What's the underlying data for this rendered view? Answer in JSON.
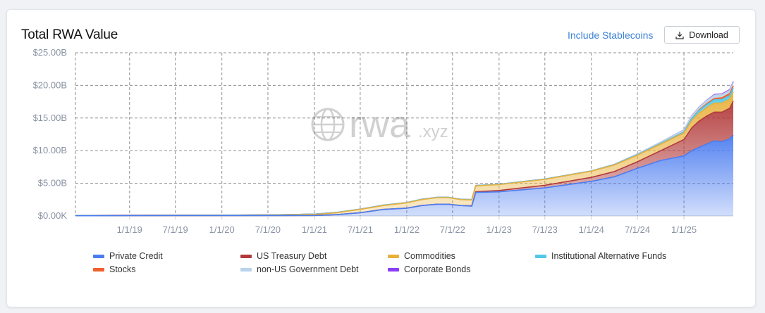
{
  "header": {
    "title": "Total RWA Value",
    "include_stablecoins_label": "Include Stablecoins",
    "download_label": "Download"
  },
  "watermark": {
    "main": "rwa",
    "suffix": ".xyz"
  },
  "colors": {
    "private_credit": "#4b7cf0",
    "us_treasury_debt": "#b23a3a",
    "commodities": "#e8b13c",
    "institutional_alternative_funds": "#53c8e6",
    "stocks": "#f0602e",
    "non_us_government_debt": "#b8d3ea",
    "corporate_bonds": "#8b3ef5",
    "grid": "#8f8f8f",
    "axis_text": "#8a93a3"
  },
  "chart_data": {
    "type": "area",
    "stacked": true,
    "title": "Total RWA Value",
    "xlabel": "",
    "ylabel": "",
    "y_ticks": [
      "$0.00K",
      "$5.00B",
      "$10.00B",
      "$15.00B",
      "$20.00B",
      "$25.00B"
    ],
    "x_ticks": [
      "1/1/19",
      "7/1/19",
      "1/1/20",
      "7/1/20",
      "1/1/21",
      "7/1/21",
      "1/1/22",
      "7/1/22",
      "1/1/23",
      "7/1/23",
      "1/1/24",
      "7/1/24",
      "1/1/25"
    ],
    "ylim": [
      0,
      25
    ],
    "y_unit": "billions USD",
    "xlim": [
      "2018-06-01",
      "2025-07-15"
    ],
    "grid": true,
    "legend_position": "bottom",
    "x": [
      "2018-06-01",
      "2019-01-01",
      "2019-07-01",
      "2020-01-01",
      "2020-07-01",
      "2021-01-01",
      "2021-04-01",
      "2021-07-01",
      "2021-10-01",
      "2022-01-01",
      "2022-03-01",
      "2022-05-01",
      "2022-06-15",
      "2022-08-01",
      "2022-09-15",
      "2022-10-01",
      "2023-01-01",
      "2023-07-01",
      "2024-01-01",
      "2024-04-01",
      "2024-07-01",
      "2024-10-01",
      "2025-01-01",
      "2025-02-01",
      "2025-03-01",
      "2025-04-01",
      "2025-05-01",
      "2025-06-01",
      "2025-07-01",
      "2025-07-15"
    ],
    "series": [
      {
        "name": "Private Credit",
        "color": "#4b7cf0",
        "values": [
          0.03,
          0.04,
          0.05,
          0.05,
          0.05,
          0.08,
          0.2,
          0.5,
          1.0,
          1.2,
          1.6,
          1.8,
          1.8,
          1.6,
          1.5,
          3.6,
          3.7,
          4.3,
          5.3,
          6.0,
          7.3,
          8.5,
          9.2,
          10.0,
          10.5,
          11.0,
          11.5,
          11.4,
          11.8,
          12.4
        ]
      },
      {
        "name": "US Treasury Debt",
        "color": "#b23a3a",
        "values": [
          0,
          0,
          0,
          0,
          0,
          0,
          0,
          0,
          0,
          0,
          0,
          0,
          0,
          0,
          0.05,
          0.1,
          0.2,
          0.4,
          0.6,
          0.8,
          1.0,
          1.5,
          2.5,
          3.5,
          4.0,
          4.3,
          4.4,
          4.5,
          4.7,
          5.2
        ]
      },
      {
        "name": "Commodities",
        "color": "#e8b13c",
        "values": [
          0,
          0,
          0,
          0.02,
          0.05,
          0.15,
          0.3,
          0.5,
          0.6,
          0.8,
          0.9,
          1.0,
          1.0,
          0.9,
          0.9,
          0.9,
          0.9,
          0.9,
          0.95,
          1.0,
          1.0,
          1.0,
          1.0,
          1.1,
          1.2,
          1.3,
          1.4,
          1.4,
          1.4,
          1.4
        ]
      },
      {
        "name": "Institutional Alternative Funds",
        "color": "#53c8e6",
        "values": [
          0.05,
          0.05,
          0.05,
          0.05,
          0.05,
          0.05,
          0.05,
          0.05,
          0.05,
          0.05,
          0.05,
          0.05,
          0.05,
          0.05,
          0.05,
          0.05,
          0.05,
          0.05,
          0.05,
          0.06,
          0.08,
          0.1,
          0.15,
          0.3,
          0.4,
          0.45,
          0.5,
          0.55,
          0.55,
          0.6
        ]
      },
      {
        "name": "Stocks",
        "color": "#f0602e",
        "values": [
          0,
          0,
          0,
          0,
          0,
          0,
          0,
          0,
          0,
          0,
          0,
          0,
          0,
          0,
          0,
          0,
          0,
          0,
          0,
          0,
          0,
          0,
          0.02,
          0.05,
          0.1,
          0.15,
          0.2,
          0.25,
          0.3,
          0.35
        ]
      },
      {
        "name": "non-US Government Debt",
        "color": "#b8d3ea",
        "values": [
          0,
          0,
          0,
          0,
          0,
          0,
          0,
          0,
          0,
          0,
          0,
          0,
          0,
          0,
          0,
          0,
          0,
          0,
          0,
          0.05,
          0.1,
          0.2,
          0.3,
          0.4,
          0.4,
          0.45,
          0.5,
          0.5,
          0.5,
          0.5
        ]
      },
      {
        "name": "Corporate Bonds",
        "color": "#8b3ef5",
        "values": [
          0,
          0,
          0,
          0,
          0,
          0,
          0,
          0,
          0,
          0,
          0,
          0,
          0,
          0,
          0,
          0,
          0,
          0,
          0,
          0,
          0,
          0,
          0.02,
          0.03,
          0.05,
          0.05,
          0.1,
          0.1,
          0.1,
          0.12
        ]
      }
    ]
  }
}
